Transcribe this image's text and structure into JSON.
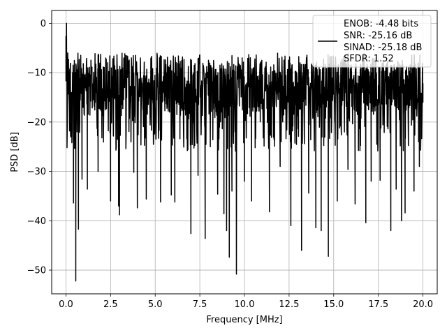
{
  "chart_data": {
    "type": "line",
    "title": "",
    "xlabel": "Frequency [MHz]",
    "ylabel": "PSD [dB]",
    "xlim": [
      -0.8,
      20.8
    ],
    "ylim": [
      -54.8,
      2.6
    ],
    "x_ticks": [
      0.0,
      2.5,
      5.0,
      7.5,
      10.0,
      12.5,
      15.0,
      17.5,
      20.0
    ],
    "x_tick_labels": [
      "0.0",
      "2.5",
      "5.0",
      "7.5",
      "10.0",
      "12.5",
      "15.0",
      "17.5",
      "20.0"
    ],
    "y_ticks": [
      0,
      -10,
      -20,
      -30,
      -40,
      -50
    ],
    "y_tick_labels": [
      "0",
      "−10",
      "−20",
      "−30",
      "−40",
      "−50"
    ],
    "grid": true,
    "legend_position": "top-right",
    "legend_lines": [
      "ENOB: -4.48 bits",
      "SNR: -25.16 dB",
      "SINAD: -25.18 dB",
      "SFDR: 1.52"
    ],
    "series": [
      {
        "color": "#000000",
        "noise_floor_db": [
          -26,
          -6
        ],
        "points": [
          [
            0.0,
            -2.6
          ],
          [
            0.03,
            0.0
          ],
          [
            0.06,
            -25.2
          ],
          [
            0.1,
            -6.0
          ],
          [
            0.15,
            -14.0
          ],
          [
            0.2,
            -21.8
          ],
          [
            0.25,
            -8.1
          ],
          [
            0.33,
            -24.2
          ],
          [
            0.42,
            -36.4
          ],
          [
            0.5,
            -16.0
          ],
          [
            0.55,
            -52.2
          ],
          [
            0.62,
            -22.0
          ],
          [
            0.7,
            -41.7
          ],
          [
            0.8,
            -12.0
          ],
          [
            0.9,
            -31.6
          ],
          [
            1.2,
            -33.6
          ],
          [
            1.8,
            -30.0
          ],
          [
            2.5,
            -36.0
          ],
          [
            2.95,
            -37.0
          ],
          [
            3.0,
            -38.8
          ],
          [
            3.8,
            -30.2
          ],
          [
            4.0,
            -37.4
          ],
          [
            4.5,
            -35.6
          ],
          [
            5.3,
            -36.2
          ],
          [
            5.9,
            -34.8
          ],
          [
            6.1,
            -36.2
          ],
          [
            7.0,
            -42.6
          ],
          [
            7.4,
            -30.8
          ],
          [
            7.8,
            -43.6
          ],
          [
            8.5,
            -34.6
          ],
          [
            8.85,
            -38.6
          ],
          [
            9.0,
            -42.0
          ],
          [
            9.15,
            -47.4
          ],
          [
            9.3,
            -34.0
          ],
          [
            9.55,
            -50.8
          ],
          [
            10.0,
            -32.0
          ],
          [
            10.4,
            -36.0
          ],
          [
            11.4,
            -38.2
          ],
          [
            12.0,
            -29.0
          ],
          [
            12.6,
            -41.0
          ],
          [
            13.2,
            -46.0
          ],
          [
            13.6,
            -34.4
          ],
          [
            14.0,
            -41.4
          ],
          [
            14.3,
            -42.0
          ],
          [
            14.7,
            -47.2
          ],
          [
            15.2,
            -36.0
          ],
          [
            15.8,
            -29.6
          ],
          [
            16.2,
            -36.6
          ],
          [
            16.8,
            -40.4
          ],
          [
            17.1,
            -32.0
          ],
          [
            17.6,
            -31.8
          ],
          [
            18.2,
            -42.0
          ],
          [
            18.5,
            -33.6
          ],
          [
            18.8,
            -40.0
          ],
          [
            19.0,
            -38.4
          ],
          [
            19.5,
            -34.0
          ],
          [
            19.8,
            -29.0
          ],
          [
            20.0,
            -16.0
          ]
        ]
      }
    ]
  }
}
